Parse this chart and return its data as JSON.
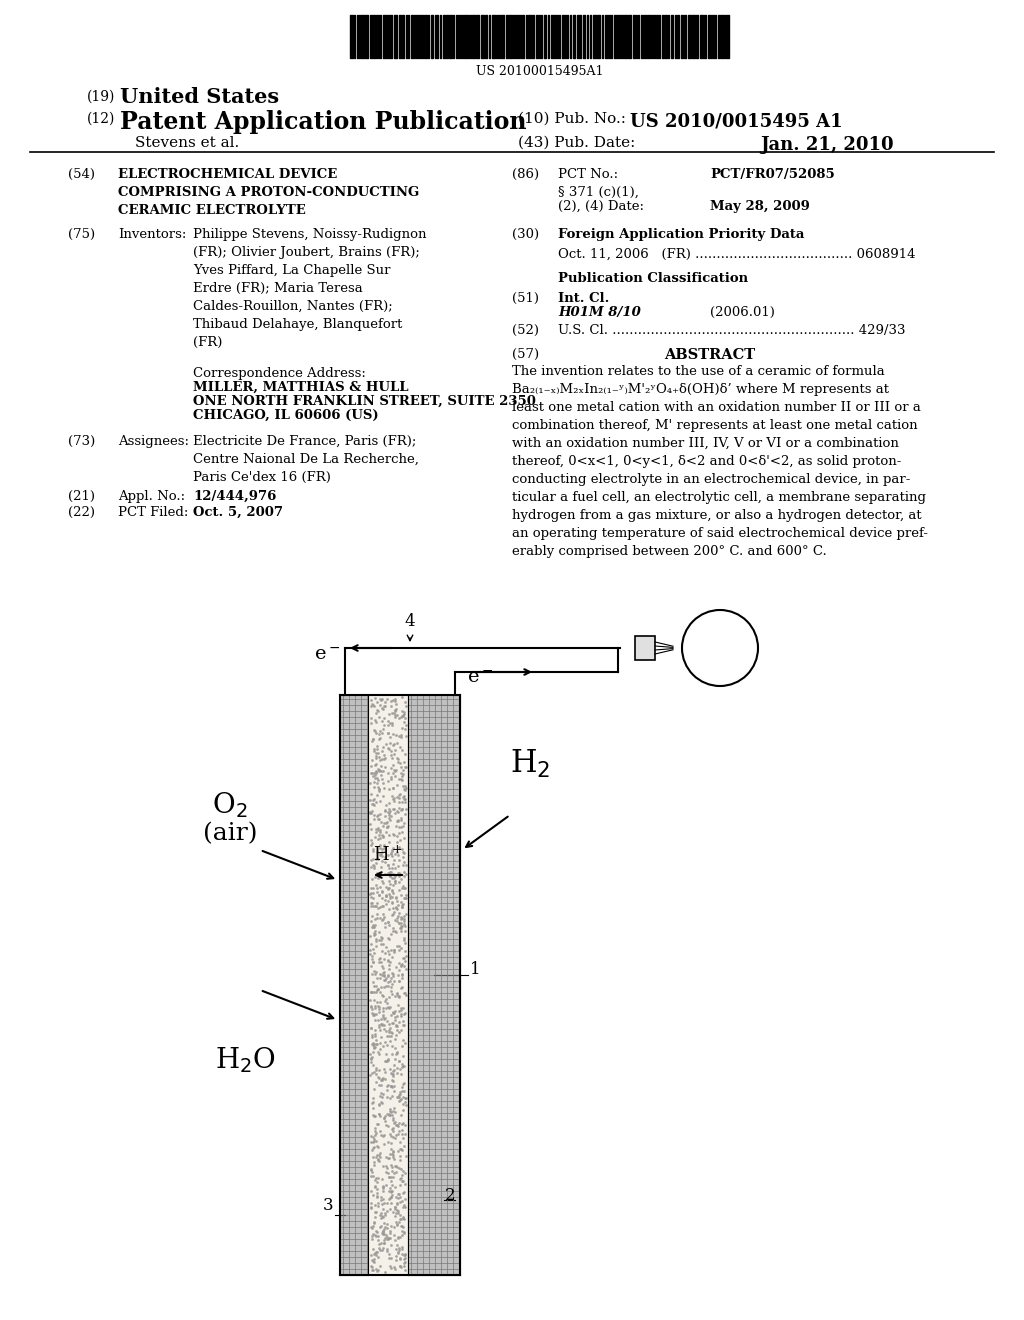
{
  "bg_color": "#ffffff",
  "barcode_text": "US 20100015495A1",
  "pub_no": "US 2010/0015495 A1",
  "pub_date": "Jan. 21, 2010",
  "abstract_text": "The invention relates to the use of a ceramic of formula\nBa2(1-x)M2xIn2(1-y)M'2yO4+δ(OH)δ' where M represents at\nleast one metal cation with an oxidation number II or III or a\ncombination thereof, M' represents at least one metal cation\nwith an oxidation number III, IV, V or VI or a combination\nthereof, 0<x<1, 0<y<1, δ<2 and 0<δ'<2, as solid proton-\nconducting electrolyte in an electrochemical device, in par-\nticular a fuel cell, an electrolytic cell, a membrane separating\nhydrogen from a gas mixture, or also a hydrogen detector, at\nan operating temperature of said electrochemical device pref-\nerably comprised between 200° C. and 600° C."
}
